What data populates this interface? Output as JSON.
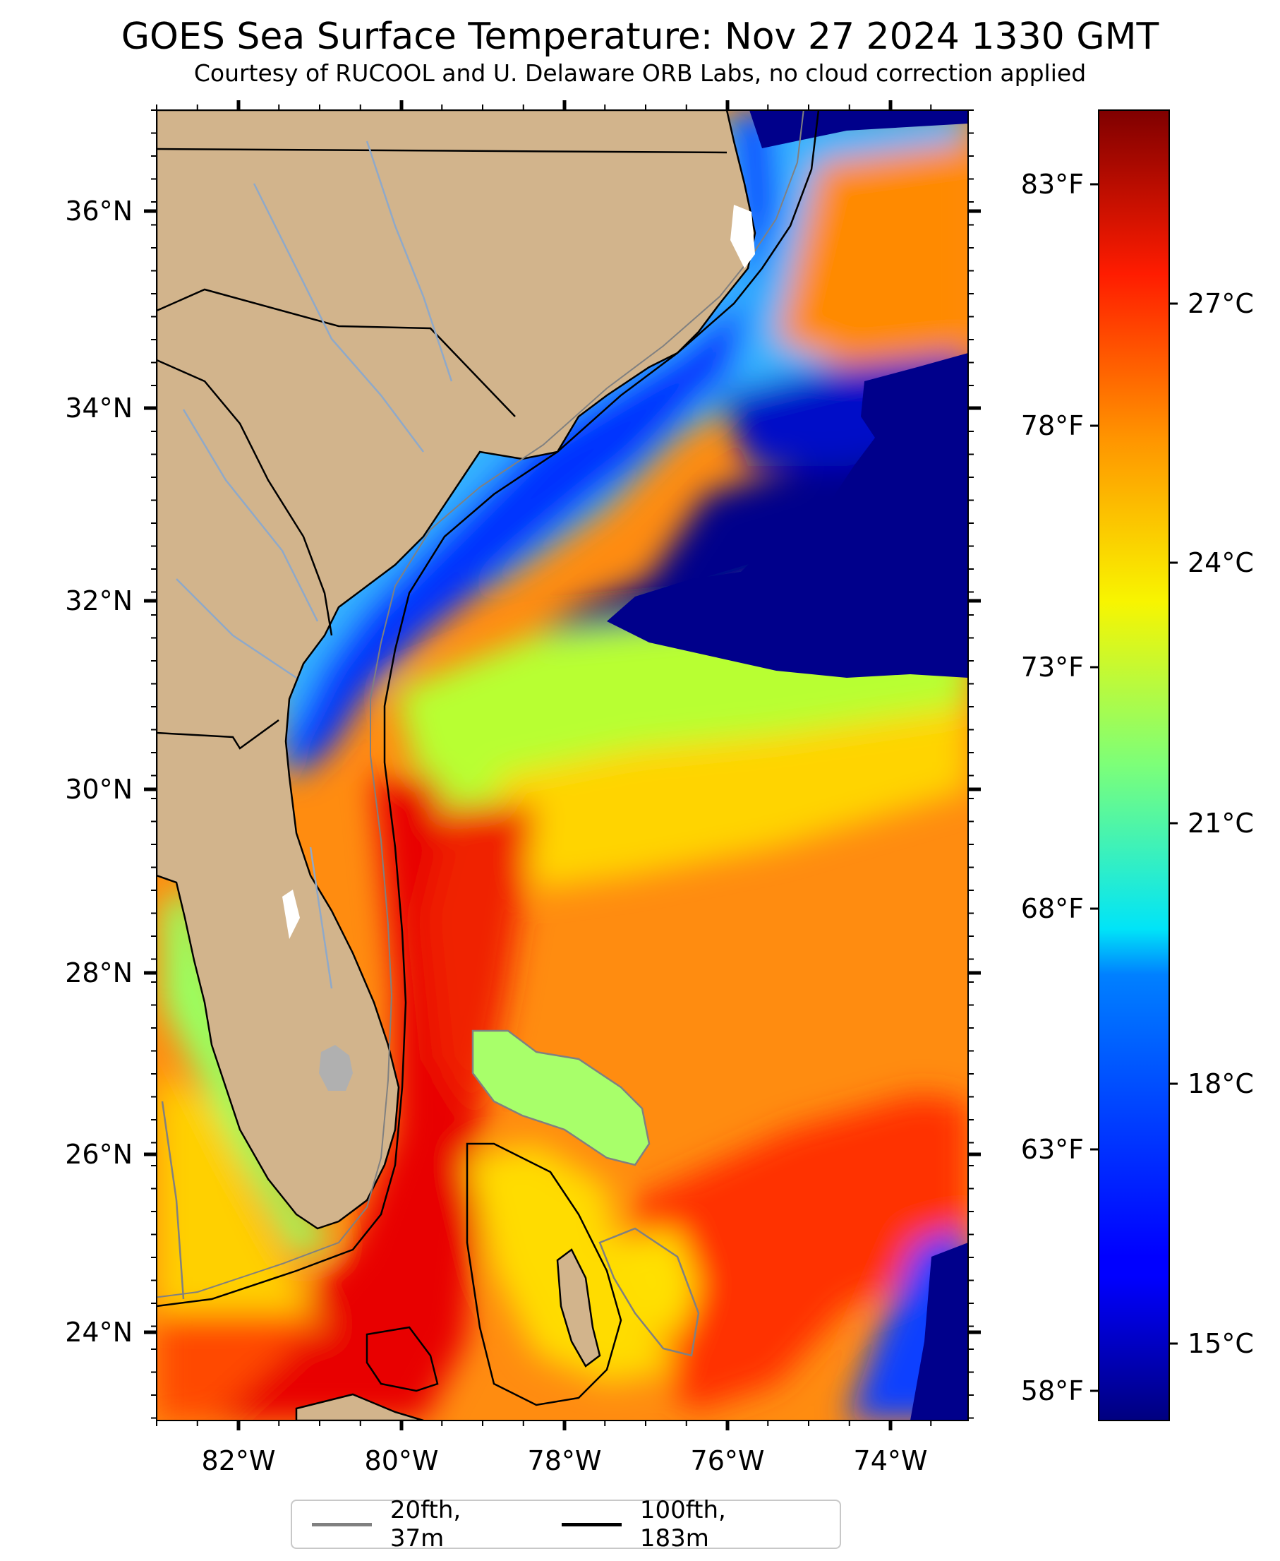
{
  "title": "GOES Sea Surface Temperature: Nov 27 2024 1330 GMT",
  "subtitle": "Courtesy of RUCOOL and U. Delaware ORB Labs, no cloud correction applied",
  "map": {
    "lon_range": [
      -83,
      -73
    ],
    "lat_range": [
      23,
      37
    ],
    "land_color": "#d2b48c",
    "lon_ticks": [
      "82°W",
      "80°W",
      "78°W",
      "76°W",
      "74°W"
    ],
    "lat_ticks": [
      "36°N",
      "34°N",
      "32°N",
      "30°N",
      "28°N",
      "26°N",
      "24°N"
    ],
    "fahrenheit_ticks": [
      "83°F",
      "78°F",
      "73°F",
      "68°F",
      "63°F",
      "58°F"
    ]
  },
  "colorbar": {
    "colormap": "jet",
    "celsius_range": [
      13.8,
      29.8
    ],
    "celsius_ticks": [
      "27°C",
      "24°C",
      "21°C",
      "18°C",
      "15°C"
    ]
  },
  "legend": {
    "items": [
      {
        "label": "20fth, 37m",
        "color": "#808080"
      },
      {
        "label": "100fth, 183m",
        "color": "#000000"
      }
    ]
  }
}
